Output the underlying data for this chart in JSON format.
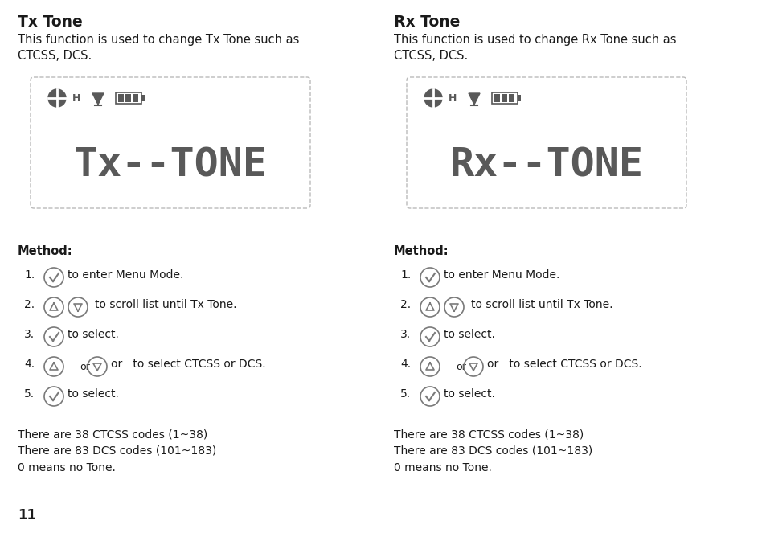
{
  "bg_color": "#ffffff",
  "text_color": "#1a1a1a",
  "gray": "#5a5a5a",
  "mid_gray": "#7a7a7a",
  "light_gray": "#aaaaaa",
  "lcd_text": "#595959",
  "lcd_border": "#bbbbbb",
  "left_title": "Tx Tone",
  "left_desc1": "This function is used to change Tx Tone such as",
  "left_desc2": "CTCSS, DCS.",
  "right_title": "Rx Tone",
  "right_desc1": "This function is used to change Rx Tone such as",
  "right_desc2": "CTCSS, DCS.",
  "method_title": "Method:",
  "method_step1_text": " to enter Menu Mode.",
  "method_step2_text": "  to scroll list until Tx Tone.",
  "method_step3_text": " to select.",
  "method_step4_text": " or  to select CTCSS or DCS.",
  "method_step5_text": " to select.",
  "info1": "There are 38 CTCSS codes (1~38)",
  "info2": "There are 83 DCS codes (101~183)",
  "info3": "0 means no Tone.",
  "page_number": "11"
}
